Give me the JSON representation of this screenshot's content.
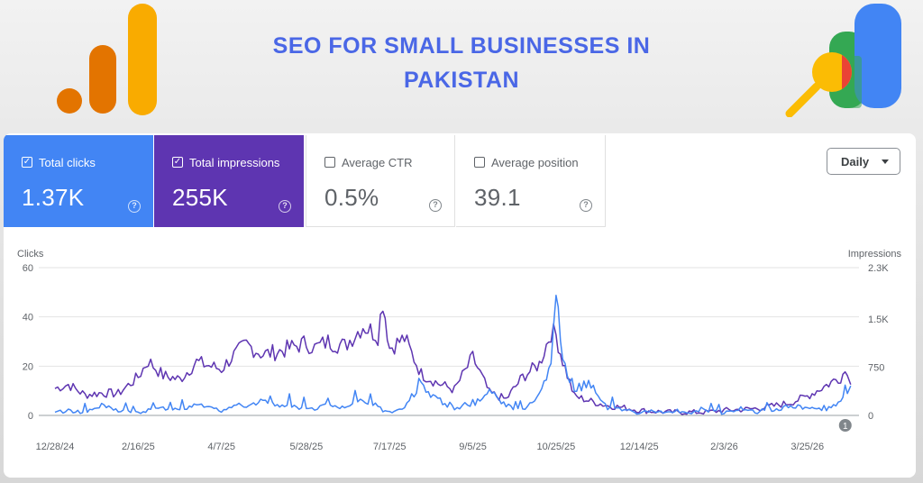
{
  "banner": {
    "title": "SEO FOR SMALL BUSINESSES IN PAKISTAN"
  },
  "colors": {
    "clicks": "#4285f4",
    "impressions": "#5e35b1",
    "title": "#4a67e6",
    "logo_orange_light": "#f9ab00",
    "logo_orange_dark": "#e37400",
    "logo_blue": "#4285f4",
    "logo_green": "#34a853",
    "logo_red": "#ea4335",
    "logo_yellow": "#fbbc04"
  },
  "metrics": [
    {
      "label": "Total clicks",
      "value": "1.37K",
      "checked": true,
      "icon": "help-icon"
    },
    {
      "label": "Total impressions",
      "value": "255K",
      "checked": true,
      "icon": "help-icon"
    },
    {
      "label": "Average CTR",
      "value": "0.5%",
      "checked": false,
      "icon": "help-icon"
    },
    {
      "label": "Average position",
      "value": "39.1",
      "checked": false,
      "icon": "help-icon"
    }
  ],
  "controls": {
    "interval_label": "Daily"
  },
  "chart_data": {
    "type": "line",
    "grid": true,
    "left_axis_title": "Clicks",
    "right_axis_title": "Impressions",
    "left_ylim": [
      0,
      60
    ],
    "right_ylim": [
      0,
      2300
    ],
    "left_ticks": [
      0,
      20,
      40,
      60
    ],
    "right_ticks": [
      0,
      750,
      1500,
      2300
    ],
    "left_tick_labels": [
      "0",
      "20",
      "40",
      "60"
    ],
    "right_tick_labels": [
      "0",
      "750",
      "1.5K",
      "2.3K"
    ],
    "x_tick_labels": [
      "12/28/24",
      "2/16/25",
      "4/7/25",
      "5/28/25",
      "7/17/25",
      "9/5/25",
      "10/25/25",
      "12/14/25",
      "2/3/26",
      "3/25/26"
    ],
    "x_period_days": 50,
    "annotation": {
      "label": "1",
      "x": "4/20/26"
    },
    "x": [
      "12/28/24",
      "1/5/25",
      "1/15/25",
      "1/25/25",
      "2/4/25",
      "2/16/25",
      "2/22/25",
      "3/3/25",
      "3/13/25",
      "3/23/25",
      "4/7/25",
      "4/13/25",
      "4/22/25",
      "5/2/25",
      "5/12/25",
      "5/28/25",
      "6/2/25",
      "6/10/25",
      "6/20/25",
      "7/1/25",
      "7/10/25",
      "7/13/25",
      "7/17/25",
      "7/26/25",
      "8/5/25",
      "8/15/25",
      "8/25/25",
      "9/5/25",
      "9/15/25",
      "9/25/25",
      "10/5/25",
      "10/15/25",
      "10/22/25",
      "10/25/25",
      "10/29/25",
      "11/5/25",
      "11/15/25",
      "11/25/25",
      "12/5/25",
      "12/14/25",
      "12/24/25",
      "1/3/26",
      "1/13/26",
      "1/23/26",
      "2/3/26",
      "2/13/26",
      "2/23/26",
      "3/5/26",
      "3/15/26",
      "3/25/26",
      "4/4/26",
      "4/14/26",
      "4/18/26",
      "4/20/26"
    ],
    "series": [
      {
        "name": "Clicks",
        "axis": "left",
        "values": [
          1,
          2,
          1,
          4,
          2,
          1,
          2,
          3,
          2,
          5,
          2,
          4,
          3,
          6,
          4,
          3,
          2,
          5,
          3,
          6,
          4,
          2,
          1,
          3,
          12,
          6,
          3,
          4,
          10,
          4,
          2,
          8,
          20,
          50,
          22,
          8,
          12,
          3,
          2,
          1,
          2,
          1,
          1,
          2,
          1,
          3,
          1,
          2,
          4,
          3,
          2,
          5,
          10,
          12
        ]
      },
      {
        "name": "Impressions",
        "axis": "right",
        "values": [
          420,
          480,
          320,
          350,
          340,
          600,
          850,
          620,
          560,
          830,
          720,
          900,
          1100,
          950,
          1000,
          1130,
          1050,
          1150,
          1080,
          1400,
          1250,
          1800,
          1050,
          1200,
          650,
          500,
          400,
          900,
          350,
          250,
          600,
          800,
          1300,
          1250,
          850,
          300,
          220,
          150,
          120,
          80,
          60,
          50,
          50,
          50,
          80,
          90,
          110,
          150,
          200,
          300,
          450,
          600,
          730,
          480
        ]
      }
    ]
  }
}
